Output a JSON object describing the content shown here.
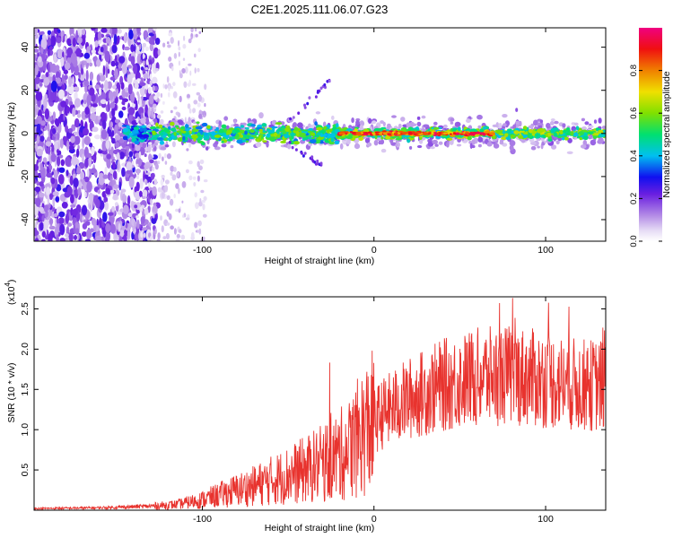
{
  "title": "C2E1.2025.111.06.07.G23",
  "chart_data": [
    {
      "type": "heatmap",
      "name": "spectrogram",
      "xlabel": "Height of straight line (km)",
      "ylabel": "Frequency (Hz)",
      "xlim": [
        -198,
        135
      ],
      "ylim": [
        -50,
        49
      ],
      "xticks": [
        -100,
        0,
        100
      ],
      "yticks": [
        -40,
        -20,
        0,
        20,
        40
      ],
      "ridge_frequency_hz": 0,
      "colorbar": {
        "label": "Normalized spectral amplitude",
        "range": [
          0.0,
          1.0
        ],
        "ticks": [
          0.0,
          0.2,
          0.4,
          0.6,
          0.8
        ],
        "tick_labels": [
          "0.0",
          "0.2",
          "0.4",
          "0.6",
          "0.8"
        ]
      }
    },
    {
      "type": "line",
      "name": "snr",
      "xlabel": "Height of straight line (km)",
      "ylabel": "SNR (10 * v/v)",
      "y_scale_label": "(x10",
      "y_scale_exponent": "4",
      "xlim": [
        -198,
        135
      ],
      "ylim": [
        0,
        2.65
      ],
      "xticks": [
        -100,
        0,
        100
      ],
      "yticks": [
        0.5,
        1.0,
        1.5,
        2.0,
        2.5
      ],
      "ytick_labels": [
        "0.5",
        "1.0",
        "1.5",
        "2.0",
        "2.5"
      ],
      "color": "#e8332e",
      "trend_x": [
        -198,
        -160,
        -130,
        -115,
        -100,
        -85,
        -70,
        -55,
        -40,
        -25,
        -15,
        -5,
        5,
        20,
        40,
        60,
        80,
        100,
        120,
        135
      ],
      "trend_y": [
        0.02,
        0.03,
        0.05,
        0.07,
        0.13,
        0.22,
        0.3,
        0.4,
        0.5,
        0.62,
        0.75,
        1.0,
        1.2,
        1.38,
        1.55,
        1.65,
        1.68,
        1.62,
        1.55,
        1.55
      ]
    }
  ]
}
